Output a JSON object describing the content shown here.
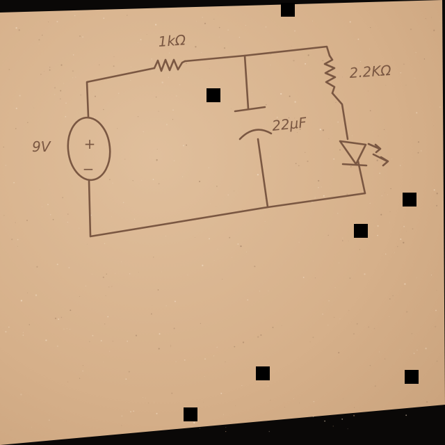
{
  "diagram": {
    "source_label": "9V",
    "source_plus": "+",
    "source_minus": "−",
    "resistor1_label": "1kΩ",
    "resistor2_label": "2.2KΩ",
    "capacitor_label": "22μF"
  },
  "colors": {
    "paper": "#d9b591",
    "ink": "#7a5742",
    "background": "#0a0807"
  }
}
